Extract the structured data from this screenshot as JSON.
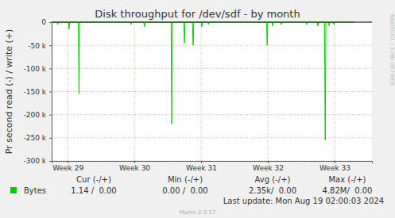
{
  "chart_data": {
    "type": "line",
    "title": "Disk throughput for /dev/sdf - by month",
    "y_label": "Pr second read (-) / write (+)",
    "x": [
      28.76,
      28.84,
      28.85,
      28.86,
      29.01,
      29.02,
      29.03,
      29.16,
      29.17,
      29.18,
      29.94,
      29.95,
      29.96,
      30.14,
      30.15,
      30.16,
      30.55,
      30.56,
      30.57,
      30.74,
      30.75,
      30.76,
      30.87,
      30.88,
      30.89,
      31.0,
      31.01,
      31.02,
      31.1,
      31.11,
      31.12,
      31.98,
      31.99,
      32.0,
      32.06,
      32.07,
      32.08,
      32.19,
      32.2,
      32.21,
      32.57,
      32.58,
      32.59,
      32.74,
      32.75,
      32.76,
      32.85,
      32.86,
      32.87,
      32.91,
      32.92,
      32.93,
      32.98,
      32.99,
      33.0,
      33.3
    ],
    "series": [
      {
        "name": "Bytes",
        "color": "#00cc00",
        "values": [
          0,
          0,
          -5000,
          0,
          0,
          -15000,
          0,
          0,
          -155000,
          0,
          0,
          -5000,
          0,
          0,
          -10000,
          0,
          0,
          -220000,
          0,
          0,
          -45000,
          0,
          0,
          -50000,
          0,
          0,
          -10000,
          0,
          0,
          -5000,
          0,
          0,
          -50000,
          0,
          0,
          -8000,
          0,
          0,
          -5000,
          0,
          0,
          -5000,
          0,
          0,
          -8000,
          0,
          0,
          -255000,
          0,
          0,
          -8000,
          0,
          0,
          -5000,
          0,
          0
        ]
      }
    ],
    "xlim": [
      28.76,
      33.56
    ],
    "xticks": [
      {
        "value": 29,
        "label": "Week 29"
      },
      {
        "value": 30,
        "label": "Week 30"
      },
      {
        "value": 31,
        "label": "Week 31"
      },
      {
        "value": 32,
        "label": "Week 32"
      },
      {
        "value": 33,
        "label": "Week 33"
      }
    ],
    "ylim": [
      -300000,
      0
    ],
    "yticks": [
      0,
      {
        "value": -50000,
        "label": "-50 k"
      },
      {
        "value": -100000,
        "label": "-100 k"
      },
      {
        "value": -150000,
        "label": "-150 k"
      },
      {
        "value": -200000,
        "label": "-200 k"
      },
      {
        "value": -250000,
        "label": "-250 k"
      },
      {
        "value": -300000,
        "label": "-300 k"
      }
    ],
    "grid": true,
    "summary": {
      "headers": [
        "Cur (-/+)",
        "Min (-/+)",
        "Avg (-/+)",
        "Max (-/+)"
      ],
      "values": [
        "1.14 /  0.00",
        "0.00 /  0.00",
        "2.35k/  0.00",
        "4.82M/  0.00"
      ]
    },
    "last_update": "Last update: Mon Aug 19 02:00:03 2024",
    "footer": "Munin 2.0.57",
    "watermark": "RRDTOOL / TOBI OETIKER"
  }
}
